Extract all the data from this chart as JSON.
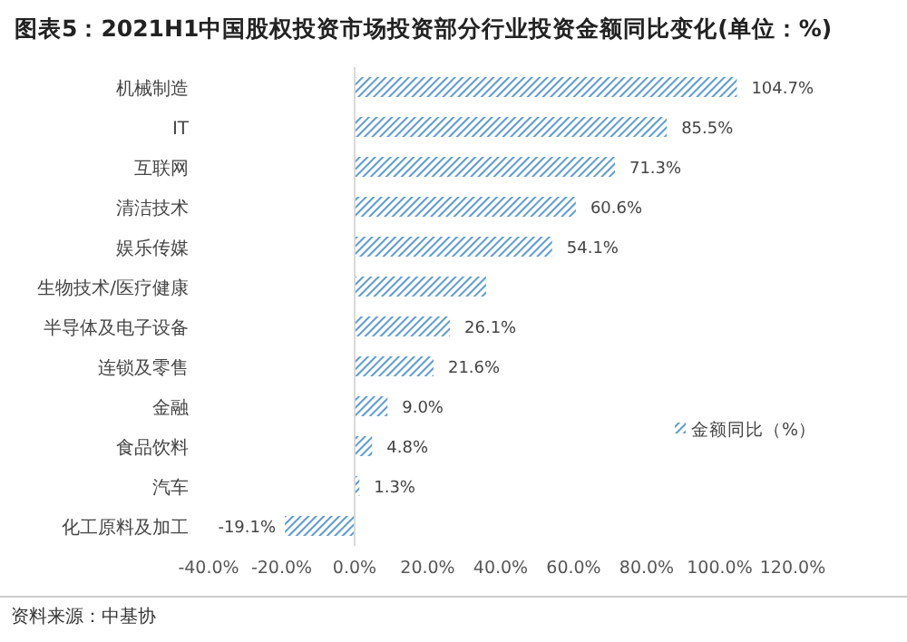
{
  "chart_data": {
    "type": "bar",
    "orientation": "horizontal",
    "title": "图表5：2021H1中国股权投资市场投资部分行业投资金额同比变化(单位：%)",
    "categories": [
      "机械制造",
      "IT",
      "互联网",
      "清洁技术",
      "娱乐传媒",
      "生物技术/医疗健康",
      "半导体及电子设备",
      "连锁及零售",
      "金融",
      "食品饮料",
      "汽车",
      "化工原料及加工"
    ],
    "series": [
      {
        "name": "金额同比（%）",
        "color": "#5b9bd5",
        "values": [
          104.7,
          85.5,
          71.3,
          60.6,
          54.1,
          36,
          26.1,
          21.6,
          9.0,
          4.8,
          1.3,
          -19.1
        ]
      }
    ],
    "value_labels": [
      "104.7%",
      "85.5%",
      "71.3%",
      "60.6%",
      "54.1%",
      null,
      "26.1%",
      "21.6%",
      "9.0%",
      "4.8%",
      "1.3%",
      "-19.1%"
    ],
    "xlim": [
      -40,
      120
    ],
    "xticks": [
      {
        "value": -40,
        "label": "-40.0%"
      },
      {
        "value": -20,
        "label": "-20.0%"
      },
      {
        "value": 0,
        "label": "0.0%"
      },
      {
        "value": 20,
        "label": "20.0%"
      },
      {
        "value": 40,
        "label": "40.0%"
      },
      {
        "value": 60,
        "label": "60.0%"
      },
      {
        "value": 80,
        "label": "80.0%"
      },
      {
        "value": 100,
        "label": "100.0%"
      },
      {
        "value": 120,
        "label": "120.0%"
      }
    ],
    "legend": "right",
    "annotations": [
      "资料来源：中基协"
    ]
  }
}
